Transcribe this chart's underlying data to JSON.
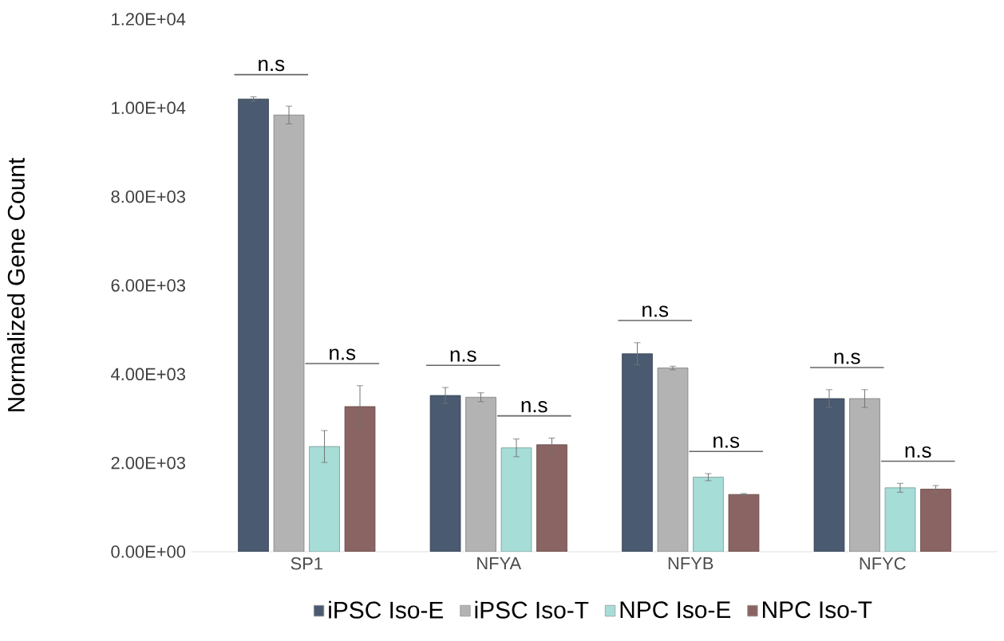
{
  "chart_data": {
    "type": "bar",
    "ylabel": "Normalized Gene Count",
    "categories": [
      "SP1",
      "NFYA",
      "NFYB",
      "NFYC"
    ],
    "series": [
      {
        "name": "iPSC Iso-E",
        "color": "#4a5a70",
        "values": [
          10200,
          3520,
          4460,
          3450
        ],
        "errors": [
          50,
          180,
          250,
          200
        ]
      },
      {
        "name": "iPSC Iso-T",
        "color": "#b3b3b3",
        "values": [
          9840,
          3480,
          4140,
          3450
        ],
        "errors": [
          200,
          100,
          40,
          200
        ]
      },
      {
        "name": "NPC Iso-E",
        "color": "#a6ddd6",
        "values": [
          2370,
          2340,
          1680,
          1440
        ],
        "errors": [
          360,
          200,
          80,
          100
        ]
      },
      {
        "name": "NPC Iso-T",
        "color": "#8a6462",
        "values": [
          3270,
          2410,
          1290,
          1410
        ],
        "errors": [
          470,
          150,
          20,
          80
        ]
      }
    ],
    "ylim": [
      0,
      12000
    ],
    "yticks": [
      {
        "value": 0,
        "label": "0.00E+00"
      },
      {
        "value": 2000,
        "label": "2.00E+03"
      },
      {
        "value": 4000,
        "label": "4.00E+03"
      },
      {
        "value": 6000,
        "label": "6.00E+03"
      },
      {
        "value": 8000,
        "label": "8.00E+03"
      },
      {
        "value": 10000,
        "label": "1.00E+04"
      },
      {
        "value": 12000,
        "label": "1.20E+04"
      }
    ],
    "annotations": [
      "n.s",
      "n.s",
      "n.s",
      "n.s",
      "n.s",
      "n.s",
      "n.s",
      "n.s"
    ],
    "grid": false,
    "legend": "bottom"
  }
}
